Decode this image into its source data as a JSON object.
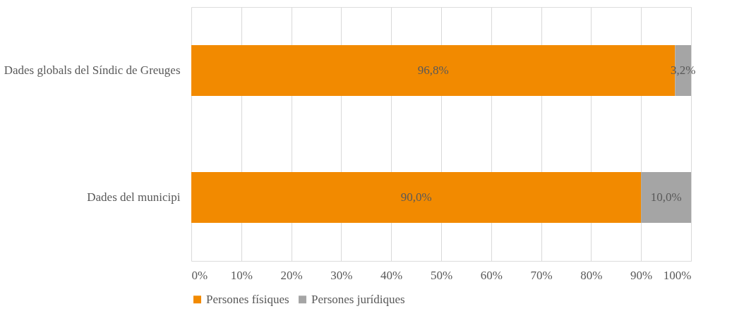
{
  "chart_data": {
    "type": "bar",
    "orientation": "horizontal",
    "stacked": true,
    "categories": [
      "Dades globals del Síndic de Greuges",
      "Dades del municipi"
    ],
    "series": [
      {
        "name": "Persones físiques",
        "color": "#f28a00",
        "values": [
          96.8,
          90.0
        ],
        "value_labels": [
          "96,8%",
          "90,0%"
        ]
      },
      {
        "name": "Persones jurídiques",
        "color": "#a5a5a5",
        "values": [
          3.2,
          10.0
        ],
        "value_labels": [
          "3,2%",
          "10,0%"
        ]
      }
    ],
    "xlim": [
      0,
      100
    ],
    "xticks": [
      {
        "value": 0,
        "label": "0%"
      },
      {
        "value": 10,
        "label": "10%"
      },
      {
        "value": 20,
        "label": "20%"
      },
      {
        "value": 30,
        "label": "30%"
      },
      {
        "value": 40,
        "label": "40%"
      },
      {
        "value": 50,
        "label": "50%"
      },
      {
        "value": 60,
        "label": "60%"
      },
      {
        "value": 70,
        "label": "70%"
      },
      {
        "value": 80,
        "label": "80%"
      },
      {
        "value": 90,
        "label": "90%"
      },
      {
        "value": 100,
        "label": "100%"
      }
    ],
    "grid": "x",
    "legend": "bottom"
  }
}
